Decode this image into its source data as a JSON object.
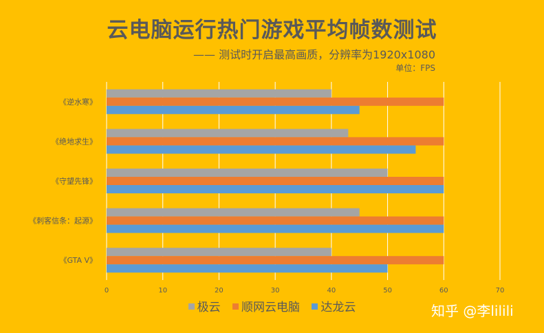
{
  "header": {
    "title": "云电脑运行热门游戏平均帧数测试",
    "subtitle": "—— 测试时开启最高画质，分辨率为1920x1080",
    "unit": "单位：FPS"
  },
  "watermark": "知乎 @李lilili",
  "colors": {
    "background": "#FFC000",
    "gridline": "#FFFFFF",
    "text": "#595959"
  },
  "chart_data": {
    "type": "bar",
    "orientation": "horizontal",
    "categories": [
      "《逆水寒》",
      "《绝地求生》",
      "《守望先锋》",
      "《刺客信条：起源》",
      "《GTA V》"
    ],
    "series": [
      {
        "name": "极云",
        "color": "#A5A5A5",
        "values": [
          40,
          43,
          50,
          45,
          40
        ]
      },
      {
        "name": "顺网云电脑",
        "color": "#ED7D31",
        "values": [
          60,
          60,
          60,
          60,
          60
        ]
      },
      {
        "name": "达龙云",
        "color": "#5B9BD5",
        "values": [
          45,
          55,
          60,
          60,
          50
        ]
      }
    ],
    "xticks": [
      0,
      10,
      20,
      30,
      40,
      50,
      60,
      70
    ],
    "xlim": [
      0,
      70
    ],
    "grid": true,
    "legend": "bottom"
  }
}
